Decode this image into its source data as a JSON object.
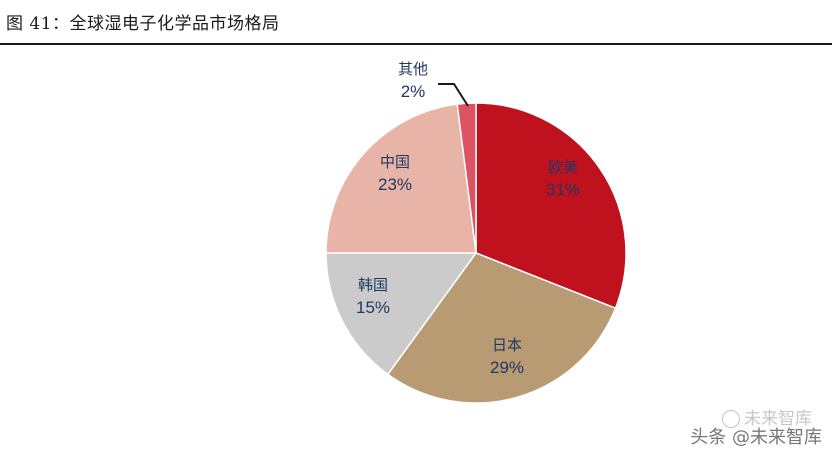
{
  "figure": {
    "title": "图 41：全球湿电子化学品市场格局"
  },
  "chart_data": {
    "type": "pie",
    "slices": [
      {
        "name": "欧美",
        "value": 31,
        "label": "31%",
        "color": "#c0111f"
      },
      {
        "name": "日本",
        "value": 29,
        "label": "29%",
        "color": "#b89a73"
      },
      {
        "name": "韩国",
        "value": 15,
        "label": "15%",
        "color": "#cbcbcb"
      },
      {
        "name": "中国",
        "value": 23,
        "label": "23%",
        "color": "#e8b4a7"
      },
      {
        "name": "其他",
        "value": 2,
        "label": "2%",
        "color": "#de5361"
      }
    ],
    "label_color": "#1f3864"
  },
  "watermark": {
    "line1": "未来智库",
    "line2": "头条 @未来智库"
  }
}
